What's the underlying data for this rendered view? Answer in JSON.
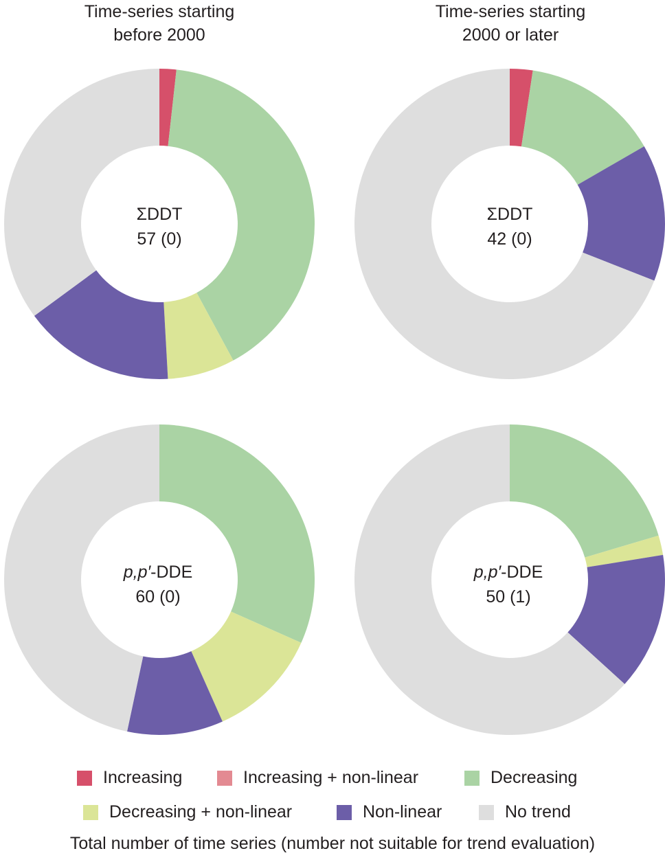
{
  "colors": {
    "increasing": "#d6506a",
    "increasing_nonlinear": "#e38a92",
    "decreasing": "#aad3a4",
    "decreasing_nonlinear": "#dbe597",
    "nonlinear": "#6c5ea8",
    "no_trend": "#dedede"
  },
  "column_titles": {
    "left": {
      "line1": "Time-series starting",
      "line2": "before 2000"
    },
    "right": {
      "line1": "Time-series starting",
      "line2": "2000 or later"
    }
  },
  "chart_data": [
    {
      "type": "pie",
      "donut": true,
      "compound_prefix": "",
      "compound_name": "ΣDDT",
      "summary": "57 (0)",
      "total": 57,
      "not_suitable": 0,
      "categories": [
        "Increasing",
        "Increasing + non-linear",
        "Decreasing",
        "Decreasing + non-linear",
        "Non-linear",
        "No trend"
      ],
      "values": [
        1,
        0,
        23,
        4,
        9,
        20
      ]
    },
    {
      "type": "pie",
      "donut": true,
      "compound_prefix": "",
      "compound_name": "ΣDDT",
      "summary": "42 (0)",
      "total": 42,
      "not_suitable": 0,
      "categories": [
        "Increasing",
        "Increasing + non-linear",
        "Decreasing",
        "Decreasing + non-linear",
        "Non-linear",
        "No trend"
      ],
      "values": [
        1,
        0,
        6,
        0,
        6,
        29
      ]
    },
    {
      "type": "pie",
      "donut": true,
      "compound_prefix": "p,p′",
      "compound_name": "-DDE",
      "summary": "60 (0)",
      "total": 60,
      "not_suitable": 0,
      "categories": [
        "Increasing",
        "Increasing + non-linear",
        "Decreasing",
        "Decreasing + non-linear",
        "Non-linear",
        "No trend"
      ],
      "values": [
        0,
        0,
        19,
        7,
        6,
        28
      ]
    },
    {
      "type": "pie",
      "donut": true,
      "compound_prefix": "p,p′",
      "compound_name": "-DDE",
      "summary": "50 (1)",
      "total": 50,
      "not_suitable": 1,
      "categories": [
        "Increasing",
        "Increasing + non-linear",
        "Decreasing",
        "Decreasing + non-linear",
        "Non-linear",
        "No trend"
      ],
      "values": [
        0,
        0,
        10,
        1,
        7,
        31
      ]
    }
  ],
  "legend": [
    {
      "label": "Increasing",
      "color": "#d6506a"
    },
    {
      "label": "Increasing + non-linear",
      "color": "#e38a92"
    },
    {
      "label": "Decreasing",
      "color": "#aad3a4"
    },
    {
      "label": "Decreasing + non-linear",
      "color": "#dbe597"
    },
    {
      "label": "Non-linear",
      "color": "#6c5ea8"
    },
    {
      "label": "No trend",
      "color": "#dedede"
    }
  ],
  "footer": "Total number of time series (number not suitable for trend evaluation)"
}
